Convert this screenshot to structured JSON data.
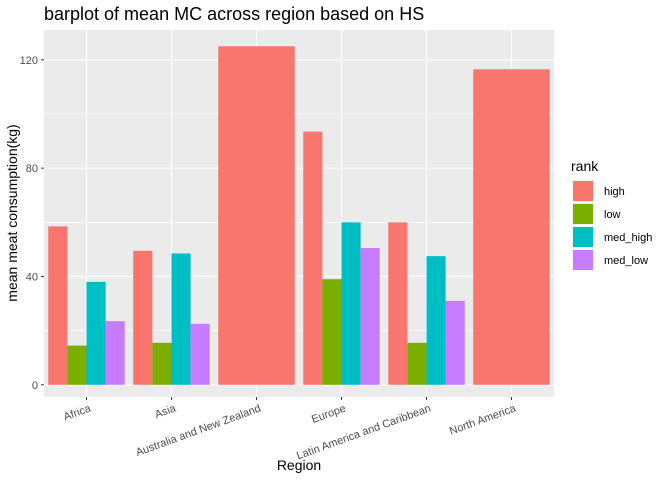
{
  "chart_data": {
    "type": "bar",
    "title": "barplot of mean MC across region based on HS",
    "xlabel": "Region",
    "ylabel": "mean meat consumption(kg)",
    "ylim": [
      -4.5,
      131
    ],
    "yticks": [
      0,
      40,
      80,
      120
    ],
    "grid": true,
    "legend_title": "rank",
    "legend_position": "right",
    "categories": [
      "Africa",
      "Asia",
      "Australia and New Zealand",
      "Europe",
      "Latin America and Caribbean",
      "North America"
    ],
    "series": [
      {
        "name": "high",
        "color": "#F8766D",
        "values": [
          58.5,
          49.5,
          125,
          93.5,
          60,
          116.5
        ]
      },
      {
        "name": "low",
        "color": "#7CAE00",
        "values": [
          14.5,
          15.5,
          null,
          39,
          15.5,
          null
        ]
      },
      {
        "name": "med_high",
        "color": "#00BFC4",
        "values": [
          38,
          48.5,
          null,
          60,
          47.5,
          null
        ]
      },
      {
        "name": "med_low",
        "color": "#C77CFF",
        "values": [
          23.5,
          22.5,
          null,
          50.5,
          31,
          null
        ]
      }
    ]
  }
}
